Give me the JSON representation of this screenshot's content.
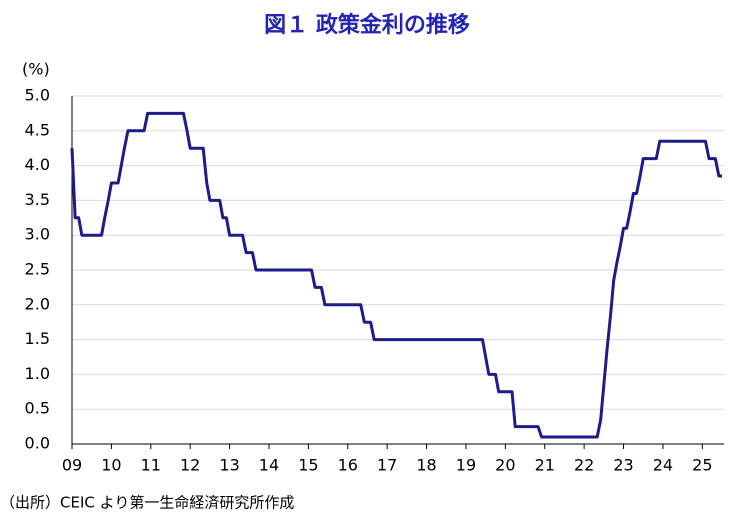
{
  "chart_data": {
    "type": "line",
    "title": "図１ 政策金利の推移",
    "y_unit": "(%)",
    "source": "（出所）CEIC より第一生命経済研究所作成",
    "x": [
      2009.0,
      2009.08,
      2009.17,
      2009.25,
      2009.75,
      2009.83,
      2009.92,
      2010.0,
      2010.17,
      2010.25,
      2010.33,
      2010.42,
      2010.83,
      2010.92,
      2011.83,
      2011.92,
      2012.0,
      2012.33,
      2012.42,
      2012.5,
      2012.75,
      2012.83,
      2012.92,
      2013.0,
      2013.33,
      2013.42,
      2013.58,
      2013.67,
      2015.08,
      2015.17,
      2015.33,
      2015.42,
      2016.33,
      2016.42,
      2016.58,
      2016.67,
      2019.42,
      2019.5,
      2019.58,
      2019.75,
      2019.83,
      2020.17,
      2020.25,
      2020.83,
      2020.92,
      2022.33,
      2022.42,
      2022.5,
      2022.58,
      2022.67,
      2022.75,
      2022.83,
      2022.92,
      2023.0,
      2023.08,
      2023.17,
      2023.25,
      2023.33,
      2023.42,
      2023.5,
      2023.83,
      2023.92,
      2025.08,
      2025.17,
      2025.33,
      2025.42,
      2025.5
    ],
    "series": [
      {
        "name": "政策金利",
        "color": "#1c1c8a",
        "values": [
          4.25,
          3.25,
          3.25,
          3.0,
          3.0,
          3.25,
          3.5,
          3.75,
          3.75,
          4.0,
          4.25,
          4.5,
          4.5,
          4.75,
          4.75,
          4.5,
          4.25,
          4.25,
          3.75,
          3.5,
          3.5,
          3.25,
          3.25,
          3.0,
          3.0,
          2.75,
          2.75,
          2.5,
          2.5,
          2.25,
          2.25,
          2.0,
          2.0,
          1.75,
          1.75,
          1.5,
          1.5,
          1.25,
          1.0,
          1.0,
          0.75,
          0.75,
          0.25,
          0.25,
          0.1,
          0.1,
          0.35,
          0.85,
          1.35,
          1.85,
          2.35,
          2.6,
          2.85,
          3.1,
          3.1,
          3.35,
          3.6,
          3.6,
          3.85,
          4.1,
          4.1,
          4.35,
          4.35,
          4.1,
          4.1,
          3.85,
          3.85
        ]
      }
    ],
    "xlim": [
      2009,
      2025.55
    ],
    "xticks": [
      {
        "value": 2009,
        "label": "09"
      },
      {
        "value": 2010,
        "label": "10"
      },
      {
        "value": 2011,
        "label": "11"
      },
      {
        "value": 2012,
        "label": "12"
      },
      {
        "value": 2013,
        "label": "13"
      },
      {
        "value": 2014,
        "label": "14"
      },
      {
        "value": 2015,
        "label": "15"
      },
      {
        "value": 2016,
        "label": "16"
      },
      {
        "value": 2017,
        "label": "17"
      },
      {
        "value": 2018,
        "label": "18"
      },
      {
        "value": 2019,
        "label": "19"
      },
      {
        "value": 2020,
        "label": "20"
      },
      {
        "value": 2021,
        "label": "21"
      },
      {
        "value": 2022,
        "label": "22"
      },
      {
        "value": 2023,
        "label": "23"
      },
      {
        "value": 2024,
        "label": "24"
      },
      {
        "value": 2025,
        "label": "25"
      }
    ],
    "ylim": [
      0,
      5
    ],
    "yticks": [
      {
        "value": 0,
        "label": "0.0"
      },
      {
        "value": 0.5,
        "label": "0.5"
      },
      {
        "value": 1,
        "label": "1.0"
      },
      {
        "value": 1.5,
        "label": "1.5"
      },
      {
        "value": 2,
        "label": "2.0"
      },
      {
        "value": 2.5,
        "label": "2.5"
      },
      {
        "value": 3,
        "label": "3.0"
      },
      {
        "value": 3.5,
        "label": "3.5"
      },
      {
        "value": 4,
        "label": "4.0"
      },
      {
        "value": 4.5,
        "label": "4.5"
      },
      {
        "value": 5,
        "label": "5.0"
      }
    ],
    "grid": true
  }
}
